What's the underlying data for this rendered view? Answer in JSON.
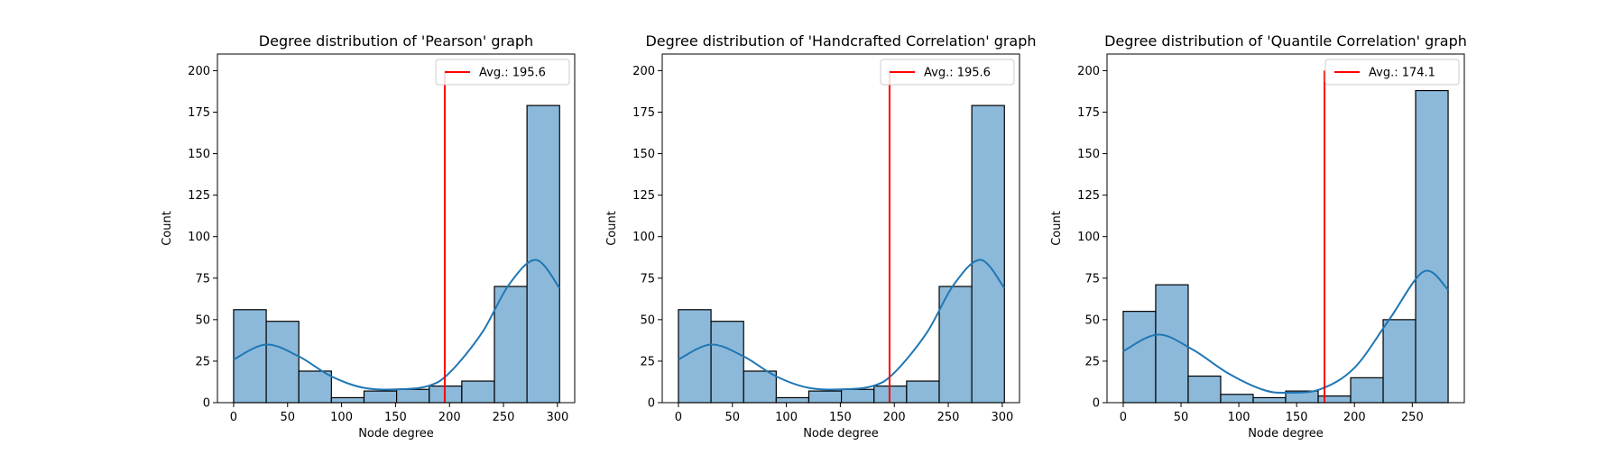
{
  "colors": {
    "bar_fill": "#8cb9da",
    "bar_edge": "#000000",
    "kde": "#1f77b4",
    "avg_line": "#ff0000"
  },
  "chart_data": [
    {
      "type": "bar",
      "title": "Degree distribution of 'Pearson' graph",
      "xlabel": "Node degree",
      "ylabel": "Count",
      "xlim": [
        -15,
        316
      ],
      "ylim": [
        0,
        210
      ],
      "xticks": [
        0,
        50,
        100,
        150,
        200,
        250,
        300
      ],
      "yticks": [
        0,
        25,
        50,
        75,
        100,
        125,
        150,
        175,
        200
      ],
      "bin_edges": [
        0,
        30.2,
        60.4,
        90.6,
        120.8,
        151,
        181.2,
        211.4,
        241.6,
        271.8,
        302
      ],
      "values": [
        56,
        49,
        19,
        3,
        7,
        8,
        10,
        13,
        70,
        179
      ],
      "kde": [
        [
          0,
          26
        ],
        [
          30,
          35
        ],
        [
          60,
          28
        ],
        [
          90,
          16
        ],
        [
          120,
          9
        ],
        [
          150,
          8
        ],
        [
          180,
          10
        ],
        [
          200,
          18
        ],
        [
          230,
          42
        ],
        [
          255,
          71
        ],
        [
          280,
          86
        ],
        [
          302,
          69
        ]
      ],
      "average": 195.6,
      "legend": "Avg.: 195.6",
      "legend_position": "upper right"
    },
    {
      "type": "bar",
      "title": "Degree distribution of 'Handcrafted Correlation' graph",
      "xlabel": "Node degree",
      "ylabel": "Count",
      "xlim": [
        -15,
        316
      ],
      "ylim": [
        0,
        210
      ],
      "xticks": [
        0,
        50,
        100,
        150,
        200,
        250,
        300
      ],
      "yticks": [
        0,
        25,
        50,
        75,
        100,
        125,
        150,
        175,
        200
      ],
      "bin_edges": [
        0,
        30.2,
        60.4,
        90.6,
        120.8,
        151,
        181.2,
        211.4,
        241.6,
        271.8,
        302
      ],
      "values": [
        56,
        49,
        19,
        3,
        7,
        8,
        10,
        13,
        70,
        179
      ],
      "kde": [
        [
          0,
          26
        ],
        [
          30,
          35
        ],
        [
          60,
          28
        ],
        [
          90,
          16
        ],
        [
          120,
          9
        ],
        [
          150,
          8
        ],
        [
          180,
          10
        ],
        [
          200,
          18
        ],
        [
          230,
          42
        ],
        [
          255,
          71
        ],
        [
          280,
          86
        ],
        [
          302,
          69
        ]
      ],
      "average": 195.6,
      "legend": "Avg.: 195.6",
      "legend_position": "upper right"
    },
    {
      "type": "bar",
      "title": "Degree distribution of 'Quantile Correlation' graph",
      "xlabel": "Node degree",
      "ylabel": "Count",
      "xlim": [
        -14,
        295
      ],
      "ylim": [
        0,
        210
      ],
      "xticks": [
        0,
        50,
        100,
        150,
        200,
        250
      ],
      "yticks": [
        0,
        25,
        50,
        75,
        100,
        125,
        150,
        175,
        200
      ],
      "bin_edges": [
        0,
        28.1,
        56.2,
        84.3,
        112.4,
        140.5,
        168.6,
        196.7,
        224.8,
        252.9,
        281
      ],
      "values": [
        55,
        71,
        16,
        5,
        3,
        7,
        4,
        15,
        50,
        188
      ],
      "kde": [
        [
          0,
          31
        ],
        [
          30,
          41
        ],
        [
          60,
          32
        ],
        [
          90,
          18
        ],
        [
          120,
          8
        ],
        [
          140,
          6
        ],
        [
          170,
          8
        ],
        [
          200,
          21
        ],
        [
          230,
          50
        ],
        [
          260,
          79
        ],
        [
          281,
          68
        ]
      ],
      "average": 174.1,
      "legend": "Avg.: 174.1",
      "legend_position": "upper right"
    }
  ]
}
